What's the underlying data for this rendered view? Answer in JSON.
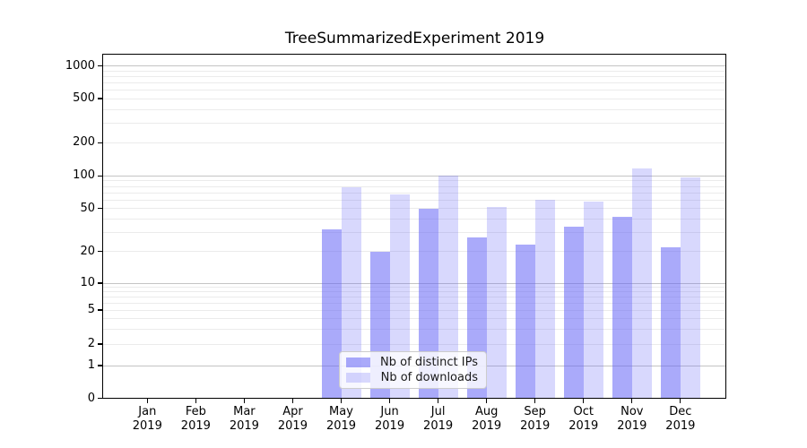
{
  "chart_data": {
    "type": "bar",
    "title": "TreeSummarizedExperiment 2019",
    "categories": [
      "Jan",
      "Feb",
      "Mar",
      "Apr",
      "May",
      "Jun",
      "Jul",
      "Aug",
      "Sep",
      "Oct",
      "Nov",
      "Dec"
    ],
    "x_tick_year_line": "2019",
    "series": [
      {
        "name": "Nb of distinct IPs",
        "color": "rgba(100,100,246,0.55)",
        "color_on_white": "#aaaaf9",
        "values": [
          null,
          null,
          null,
          null,
          32,
          20,
          50,
          27,
          23,
          34,
          42,
          22
        ]
      },
      {
        "name": "Nb of downloads",
        "color": "rgba(100,100,246,0.25)",
        "color_on_white": "#dcdcfa",
        "values": [
          null,
          null,
          null,
          null,
          78,
          67,
          100,
          52,
          60,
          58,
          117,
          97
        ]
      }
    ],
    "ylabel": "",
    "xlabel": "",
    "y_axis": {
      "scale": "symlog",
      "tick_values": [
        0,
        1,
        2,
        5,
        10,
        20,
        50,
        100,
        200,
        500,
        1000
      ],
      "minor_tick_values": [
        2,
        3,
        4,
        5,
        6,
        7,
        8,
        9,
        20,
        30,
        40,
        50,
        60,
        70,
        80,
        90,
        200,
        300,
        400,
        500,
        600,
        700,
        800,
        900
      ],
      "ylim": [
        0,
        1300
      ]
    },
    "legend": {
      "position": "lower center",
      "entries": [
        "Nb of distinct IPs",
        "Nb of downloads"
      ]
    },
    "grid": "horizontal major + log minor",
    "colors": {
      "grid_major": "#c4c4c4",
      "grid_minor": "#ebebeb",
      "spine": "#000000",
      "text": "#000000"
    }
  }
}
